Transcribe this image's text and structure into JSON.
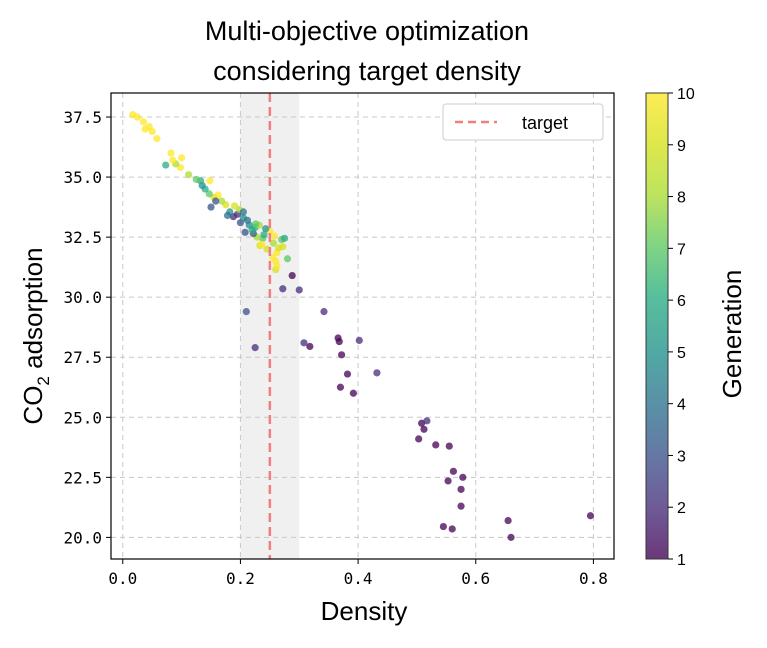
{
  "chart_data": {
    "type": "scatter",
    "title_lines": [
      "Multi-objective optimization",
      "considering target density"
    ],
    "xlabel": "Density",
    "ylabel_main": "CO",
    "ylabel_sub": "2",
    "ylabel_rest": " adsorption",
    "colorbar_label": "Generation",
    "xlim": [
      -0.02,
      0.835
    ],
    "ylim": [
      19.1,
      38.5
    ],
    "xticks": [
      0.0,
      0.2,
      0.4,
      0.6,
      0.8
    ],
    "xtick_labels": [
      "0.0",
      "0.2",
      "0.4",
      "0.6",
      "0.8"
    ],
    "yticks": [
      20.0,
      22.5,
      25.0,
      27.5,
      30.0,
      32.5,
      35.0,
      37.5
    ],
    "ytick_labels": [
      "20.0",
      "22.5",
      "25.0",
      "27.5",
      "30.0",
      "32.5",
      "35.0",
      "37.5"
    ],
    "colorbar_ticks": [
      1,
      2,
      3,
      4,
      5,
      6,
      7,
      8,
      9,
      10
    ],
    "colorbar_tick_labels": [
      "1",
      "2",
      "3",
      "4",
      "5",
      "6",
      "7",
      "8",
      "9",
      "10"
    ],
    "colorbar_range": [
      1,
      10
    ],
    "colormap": "viridis",
    "grid": true,
    "legend": {
      "placement": "top-right",
      "entries": [
        "target"
      ]
    },
    "target_line": {
      "x": 0.25,
      "color": "#f08080"
    },
    "target_band": [
      0.2,
      0.3
    ],
    "points": [
      [
        0.795,
        20.9,
        1
      ],
      [
        0.66,
        20.0,
        1
      ],
      [
        0.655,
        20.7,
        1
      ],
      [
        0.56,
        20.35,
        1
      ],
      [
        0.545,
        20.45,
        1
      ],
      [
        0.575,
        21.3,
        1
      ],
      [
        0.575,
        22.0,
        1
      ],
      [
        0.578,
        22.5,
        1
      ],
      [
        0.553,
        22.35,
        1
      ],
      [
        0.562,
        22.75,
        1
      ],
      [
        0.555,
        23.8,
        1
      ],
      [
        0.532,
        23.85,
        1
      ],
      [
        0.503,
        24.1,
        1
      ],
      [
        0.512,
        24.5,
        1
      ],
      [
        0.508,
        24.75,
        1
      ],
      [
        0.517,
        24.85,
        2
      ],
      [
        0.432,
        26.85,
        2
      ],
      [
        0.392,
        26.0,
        1
      ],
      [
        0.382,
        26.8,
        1
      ],
      [
        0.37,
        26.25,
        1
      ],
      [
        0.372,
        27.6,
        1
      ],
      [
        0.368,
        28.15,
        1
      ],
      [
        0.366,
        28.3,
        1
      ],
      [
        0.402,
        28.2,
        2
      ],
      [
        0.318,
        27.95,
        1
      ],
      [
        0.308,
        28.1,
        2
      ],
      [
        0.225,
        27.9,
        2
      ],
      [
        0.21,
        29.4,
        3
      ],
      [
        0.342,
        29.4,
        2
      ],
      [
        0.3,
        30.3,
        2
      ],
      [
        0.272,
        30.35,
        2
      ],
      [
        0.288,
        30.9,
        1
      ],
      [
        0.28,
        31.6,
        7
      ],
      [
        0.26,
        31.15,
        9
      ],
      [
        0.26,
        31.5,
        10
      ],
      [
        0.262,
        31.85,
        10
      ],
      [
        0.255,
        31.65,
        10
      ],
      [
        0.265,
        32.05,
        9
      ],
      [
        0.256,
        32.25,
        8
      ],
      [
        0.27,
        32.4,
        7
      ],
      [
        0.275,
        32.45,
        6
      ],
      [
        0.272,
        32.1,
        9
      ],
      [
        0.258,
        32.55,
        10
      ],
      [
        0.25,
        32.75,
        10
      ],
      [
        0.243,
        32.85,
        5
      ],
      [
        0.238,
        32.45,
        7
      ],
      [
        0.233,
        32.15,
        9
      ],
      [
        0.228,
        32.5,
        8
      ],
      [
        0.222,
        32.65,
        3
      ],
      [
        0.208,
        32.7,
        3
      ],
      [
        0.22,
        32.8,
        6
      ],
      [
        0.225,
        32.9,
        6
      ],
      [
        0.232,
        33.0,
        8
      ],
      [
        0.215,
        33.0,
        5
      ],
      [
        0.2,
        33.1,
        3
      ],
      [
        0.205,
        33.3,
        5
      ],
      [
        0.195,
        33.45,
        2
      ],
      [
        0.188,
        33.35,
        2
      ],
      [
        0.198,
        33.65,
        8
      ],
      [
        0.19,
        33.8,
        9
      ],
      [
        0.182,
        33.55,
        5
      ],
      [
        0.175,
        33.85,
        9
      ],
      [
        0.168,
        34.0,
        8
      ],
      [
        0.15,
        33.75,
        3
      ],
      [
        0.155,
        34.15,
        9
      ],
      [
        0.162,
        34.25,
        10
      ],
      [
        0.147,
        34.3,
        7
      ],
      [
        0.14,
        34.5,
        6
      ],
      [
        0.135,
        34.65,
        5
      ],
      [
        0.132,
        34.85,
        6
      ],
      [
        0.148,
        34.85,
        10
      ],
      [
        0.125,
        34.9,
        7
      ],
      [
        0.112,
        35.1,
        8
      ],
      [
        0.098,
        35.4,
        10
      ],
      [
        0.09,
        35.55,
        8
      ],
      [
        0.085,
        35.7,
        10
      ],
      [
        0.1,
        35.8,
        10
      ],
      [
        0.082,
        36.0,
        10
      ],
      [
        0.073,
        35.5,
        6
      ],
      [
        0.058,
        36.6,
        10
      ],
      [
        0.05,
        36.9,
        10
      ],
      [
        0.038,
        37.0,
        10
      ],
      [
        0.045,
        37.1,
        10
      ],
      [
        0.035,
        37.3,
        10
      ],
      [
        0.025,
        37.5,
        10
      ],
      [
        0.017,
        37.6,
        10
      ],
      [
        0.205,
        33.55,
        4
      ],
      [
        0.212,
        33.2,
        4
      ],
      [
        0.226,
        33.05,
        7
      ],
      [
        0.24,
        32.6,
        6
      ],
      [
        0.236,
        32.2,
        10
      ],
      [
        0.262,
        31.3,
        10
      ],
      [
        0.245,
        32.0,
        9
      ],
      [
        0.158,
        34.0,
        3
      ],
      [
        0.178,
        33.4,
        4
      ]
    ]
  }
}
